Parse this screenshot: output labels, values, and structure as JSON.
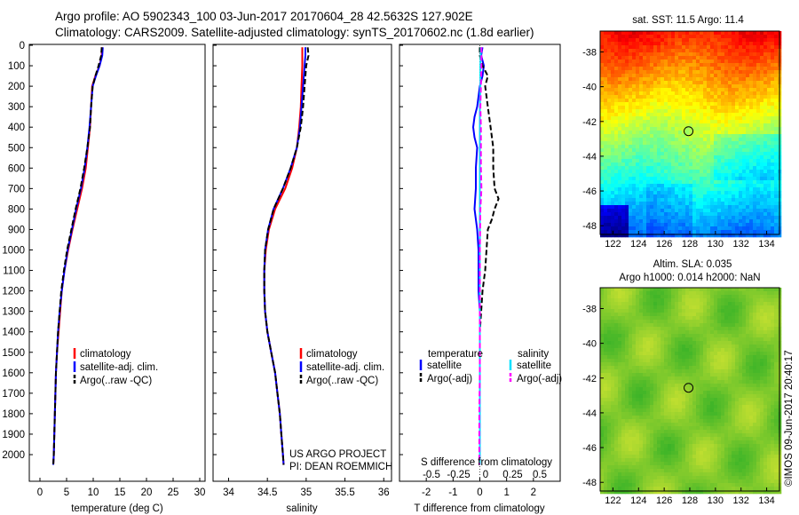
{
  "header": {
    "line1": "Argo profile: AO 5902343_100 03-Jun-2017 20170604_28 42.5632S 127.902E",
    "line2": "Climatology: CARS2009. Satellite-adjusted climatology: synTS_20170602.nc (1.8d earlier)"
  },
  "colors": {
    "climatology": "#ff0000",
    "satellite": "#0000ff",
    "argo": "#000000",
    "salinity_satellite": "#00e0ff",
    "salinity_argo": "#ff00ff"
  },
  "chart_data": [
    {
      "type": "line",
      "title": "",
      "xlabel": "temperature (deg C)",
      "ylabel": "",
      "xlim": [
        -2,
        31
      ],
      "ylim": [
        2060,
        0
      ],
      "xticks": [
        "0",
        "5",
        "10",
        "15",
        "20",
        "25",
        "30"
      ],
      "yticks": [
        "0",
        "100",
        "200",
        "300",
        "400",
        "500",
        "600",
        "700",
        "800",
        "900",
        "1000",
        "1100",
        "1200",
        "1300",
        "1400",
        "1500",
        "1600",
        "1700",
        "1800",
        "1900",
        "2000"
      ],
      "legend": [
        "climatology",
        "satellite-adj. clim.",
        "Argo(..raw -QC)"
      ],
      "legend_position": "lower-right",
      "series": [
        {
          "name": "climatology",
          "depth": [
            10,
            50,
            100,
            150,
            200,
            300,
            400,
            500,
            600,
            700,
            800,
            900,
            1000,
            1100,
            1200,
            1300,
            1400,
            1500,
            1600,
            1800,
            2000,
            2050
          ],
          "values": [
            11.6,
            11.6,
            11.2,
            10.4,
            9.8,
            9.6,
            9.4,
            9.0,
            8.6,
            7.9,
            7.0,
            6.1,
            5.3,
            4.6,
            4.1,
            3.8,
            3.5,
            3.2,
            3.0,
            2.8,
            2.6,
            2.5
          ]
        },
        {
          "name": "satellite-adj. clim.",
          "depth": [
            10,
            50,
            100,
            150,
            200,
            300,
            400,
            500,
            600,
            700,
            800,
            900,
            1000,
            1100,
            1200,
            1300,
            1400,
            1500,
            1600,
            1800,
            2000,
            2050
          ],
          "values": [
            11.8,
            11.7,
            11.2,
            10.5,
            9.9,
            9.6,
            9.3,
            8.9,
            8.4,
            7.7,
            6.8,
            6.0,
            5.2,
            4.6,
            4.1,
            3.7,
            3.4,
            3.2,
            3.0,
            2.8,
            2.6,
            2.5
          ]
        },
        {
          "name": "Argo(..raw -QC)",
          "depth": [
            10,
            50,
            100,
            150,
            200,
            300,
            400,
            500,
            600,
            700,
            800,
            900,
            1000,
            1100,
            1200,
            1300,
            1400,
            1500,
            1600,
            1800,
            2000,
            2050
          ],
          "values": [
            11.6,
            11.5,
            11.0,
            10.4,
            9.9,
            9.6,
            9.4,
            8.9,
            8.3,
            7.6,
            6.7,
            5.9,
            5.1,
            4.5,
            4.0,
            3.7,
            3.4,
            3.2,
            3.0,
            2.8,
            2.6,
            2.5
          ]
        }
      ]
    },
    {
      "type": "line",
      "title": "",
      "xlabel": "salinity",
      "ylabel": "",
      "xlim": [
        33.8,
        36.1
      ],
      "ylim": [
        2060,
        0
      ],
      "xticks": [
        "34",
        "34.5",
        "35",
        "35.5",
        "36"
      ],
      "legend": [
        "climatology",
        "satellite-adj. clim.",
        "Argo(..raw -QC)"
      ],
      "legend_position": "lower-right",
      "annotation": [
        "US ARGO PROJECT",
        "PI: DEAN ROEMMICH"
      ],
      "series": [
        {
          "name": "climatology",
          "depth": [
            10,
            50,
            100,
            200,
            300,
            400,
            500,
            600,
            700,
            800,
            900,
            1000,
            1100,
            1200,
            1300,
            1400,
            1500,
            1600,
            1700,
            1800,
            1900,
            2000,
            2050
          ],
          "values": [
            34.95,
            34.95,
            34.95,
            34.94,
            34.93,
            34.91,
            34.88,
            34.82,
            34.73,
            34.6,
            34.52,
            34.48,
            34.46,
            34.46,
            34.47,
            34.5,
            34.55,
            34.6,
            34.63,
            34.66,
            34.68,
            34.7,
            34.71
          ]
        },
        {
          "name": "satellite-adj. clim.",
          "depth": [
            10,
            50,
            100,
            200,
            300,
            400,
            500,
            600,
            700,
            800,
            900,
            1000,
            1100,
            1200,
            1300,
            1400,
            1500,
            1600,
            1700,
            1800,
            1900,
            2000,
            2050
          ],
          "values": [
            34.99,
            34.99,
            34.98,
            34.96,
            34.94,
            34.92,
            34.88,
            34.8,
            34.7,
            34.58,
            34.51,
            34.47,
            34.46,
            34.46,
            34.47,
            34.5,
            34.55,
            34.6,
            34.63,
            34.66,
            34.68,
            34.7,
            34.71
          ]
        },
        {
          "name": "Argo(..raw -QC)",
          "depth": [
            10,
            50,
            100,
            200,
            300,
            400,
            500,
            600,
            700,
            800,
            900,
            1000,
            1100,
            1200,
            1300,
            1400,
            1500,
            1600,
            1700,
            1800,
            1900,
            2000,
            2050
          ],
          "values": [
            35.02,
            35.03,
            35.0,
            34.98,
            34.96,
            34.93,
            34.88,
            34.8,
            34.7,
            34.58,
            34.51,
            34.47,
            34.46,
            34.46,
            34.47,
            34.5,
            34.55,
            34.6,
            34.63,
            34.66,
            34.68,
            34.7,
            34.71
          ]
        }
      ]
    },
    {
      "type": "line",
      "title": "",
      "xlabel": "T difference from climatology",
      "xlabel2": "S difference from climatology",
      "ylabel": "",
      "xlim": [
        -3,
        3
      ],
      "ylim": [
        2060,
        0
      ],
      "xticks": [
        "-2",
        "-1",
        "0",
        "1",
        "2"
      ],
      "xticks_s": [
        "-0.5",
        "-0.25",
        "0",
        "0.25",
        "0.5"
      ],
      "legend_temperature_title": "temperature",
      "legend_salinity_title": "salinity",
      "legend_temperature": [
        "satellite",
        "Argo(-adj)"
      ],
      "legend_salinity": [
        "satellite",
        "Argo(-adj)"
      ],
      "series": [
        {
          "name": "satellite",
          "depth": [
            10,
            50,
            100,
            150,
            200,
            300,
            350,
            400,
            450,
            500,
            600,
            700,
            800,
            900,
            1000,
            1100,
            1200,
            1300,
            1400,
            1600,
            1800,
            2000,
            2050
          ],
          "values": [
            0.1,
            0.05,
            0.15,
            0.1,
            0.0,
            -0.1,
            -0.2,
            -0.25,
            -0.2,
            -0.1,
            -0.15,
            -0.15,
            -0.2,
            -0.1,
            -0.05,
            -0.05,
            -0.05,
            0.0,
            0.0,
            0.0,
            0.0,
            0.0,
            0.0
          ]
        },
        {
          "name": "Argo(-adj)",
          "depth": [
            10,
            50,
            100,
            150,
            200,
            300,
            400,
            500,
            600,
            700,
            750,
            800,
            850,
            900,
            1000,
            1100,
            1200,
            1300,
            1400,
            1600,
            1800,
            2000,
            2050
          ],
          "values": [
            0.0,
            0.0,
            0.1,
            0.3,
            0.2,
            0.3,
            0.4,
            0.5,
            0.5,
            0.55,
            0.7,
            0.55,
            0.45,
            0.3,
            0.25,
            0.2,
            0.1,
            0.05,
            0.0,
            0.0,
            0.0,
            0.0,
            0.0
          ]
        },
        {
          "name": "satellite",
          "depth": [
            10,
            100,
            200,
            300,
            400,
            500,
            600,
            700,
            800,
            900,
            1000,
            1100,
            1200,
            1300,
            1400,
            1600,
            1800,
            2000,
            2050
          ],
          "values": [
            0.02,
            0.01,
            0.01,
            0.0,
            0.0,
            0.0,
            0.0,
            0.0,
            0.0,
            0.0,
            0.0,
            0.0,
            0.0,
            0.0,
            0.0,
            0.0,
            0.0,
            0.0,
            0.0
          ]
        },
        {
          "name": "Argo(-adj)",
          "depth": [
            10,
            100,
            200,
            300,
            400,
            500,
            600,
            700,
            800,
            1000,
            1200,
            1400,
            1600,
            1800,
            2000,
            2050
          ],
          "values": [
            0.03,
            0.03,
            0.02,
            0.01,
            0.02,
            0.02,
            0.02,
            0.03,
            0.01,
            0.0,
            0.0,
            0.0,
            0.0,
            -0.01,
            -0.01,
            -0.01
          ]
        }
      ]
    },
    {
      "type": "heatmap",
      "title": "sat. SST: 11.5 Argo: 11.4",
      "xlim": [
        121,
        135
      ],
      "ylim": [
        -48.5,
        -36.8
      ],
      "xticks": [
        "122",
        "124",
        "126",
        "128",
        "130",
        "132",
        "134"
      ],
      "yticks": [
        "-38",
        "-40",
        "-42",
        "-44",
        "-46",
        "-48"
      ],
      "marker": {
        "lon": 127.9,
        "lat": -42.56
      }
    },
    {
      "type": "heatmap",
      "title": "Altim. SLA: 0.035",
      "subtitle": "Argo h1000: 0.014 h2000: NaN",
      "xlim": [
        121,
        135
      ],
      "ylim": [
        -48.5,
        -36.8
      ],
      "xticks": [
        "122",
        "124",
        "126",
        "128",
        "130",
        "132",
        "134"
      ],
      "yticks": [
        "-38",
        "-40",
        "-42",
        "-44",
        "-46",
        "-48"
      ],
      "marker": {
        "lon": 127.9,
        "lat": -42.56
      }
    }
  ],
  "credit": "©IMOS 09-Jun-2017 20:40:17"
}
